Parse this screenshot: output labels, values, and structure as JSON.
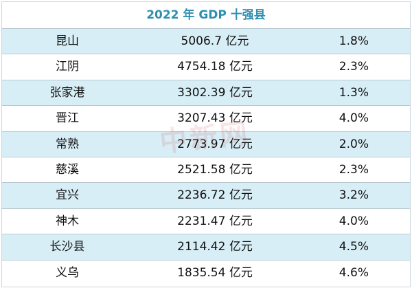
{
  "table": {
    "title": "2022 年 GDP 十强县",
    "rows": [
      [
        "昆山",
        "5006.7 亿元",
        "1.8%"
      ],
      [
        "江阴",
        "4754.18 亿元",
        "2.3%"
      ],
      [
        "张家港",
        "3302.39 亿元",
        "1.3%"
      ],
      [
        "晋江",
        "3207.43 亿元",
        "4.0%"
      ],
      [
        "常熟",
        "2773.97 亿元",
        "2.0%"
      ],
      [
        "慈溪",
        "2521.58 亿元",
        "2.3%"
      ],
      [
        "宜兴",
        "2236.72 亿元",
        "3.2%"
      ],
      [
        "神木",
        "2231.47 亿元",
        "4.0%"
      ],
      [
        "长沙县",
        "2114.42 亿元",
        "4.5%"
      ],
      [
        "义乌",
        "1835.54 亿元",
        "4.6%"
      ]
    ]
  },
  "watermark": "中新网"
}
